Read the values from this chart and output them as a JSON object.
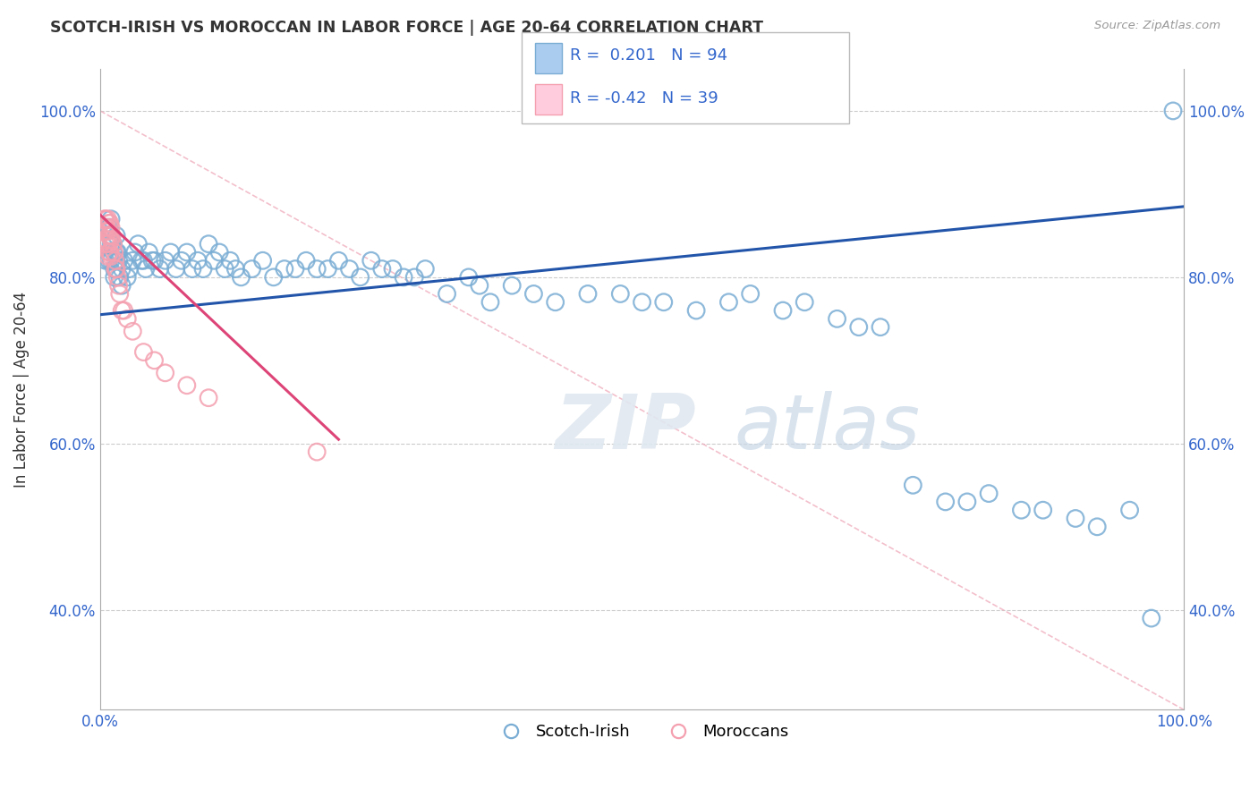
{
  "title": "SCOTCH-IRISH VS MOROCCAN IN LABOR FORCE | AGE 20-64 CORRELATION CHART",
  "source": "Source: ZipAtlas.com",
  "ylabel": "In Labor Force | Age 20-64",
  "xlim": [
    0.0,
    1.0
  ],
  "ylim": [
    0.28,
    1.05
  ],
  "xtick_labels": [
    "0.0%",
    "100.0%"
  ],
  "ytick_labels": [
    "40.0%",
    "60.0%",
    "80.0%",
    "100.0%"
  ],
  "ytick_values": [
    0.4,
    0.6,
    0.8,
    1.0
  ],
  "blue_color": "#7aadd4",
  "pink_color": "#f4a0b0",
  "blue_line_color": "#2255aa",
  "pink_line_color": "#dd4477",
  "legend_blue_label": "Scotch-Irish",
  "legend_pink_label": "Moroccans",
  "R_blue": 0.201,
  "N_blue": 94,
  "R_pink": -0.42,
  "N_pink": 39,
  "blue_trend_x": [
    0.0,
    1.0
  ],
  "blue_trend_y": [
    0.755,
    0.885
  ],
  "pink_trend_x": [
    0.0,
    0.22
  ],
  "pink_trend_y": [
    0.875,
    0.605
  ],
  "diag_line_x": [
    0.0,
    1.0
  ],
  "diag_line_y": [
    1.0,
    0.28
  ],
  "blue_scatter_x": [
    0.005,
    0.008,
    0.008,
    0.01,
    0.01,
    0.01,
    0.01,
    0.012,
    0.012,
    0.013,
    0.013,
    0.015,
    0.015,
    0.015,
    0.016,
    0.017,
    0.018,
    0.02,
    0.02,
    0.022,
    0.025,
    0.027,
    0.03,
    0.032,
    0.035,
    0.038,
    0.04,
    0.042,
    0.045,
    0.048,
    0.05,
    0.055,
    0.06,
    0.065,
    0.07,
    0.075,
    0.08,
    0.085,
    0.09,
    0.095,
    0.1,
    0.105,
    0.11,
    0.115,
    0.12,
    0.125,
    0.13,
    0.14,
    0.15,
    0.16,
    0.17,
    0.18,
    0.19,
    0.2,
    0.21,
    0.22,
    0.23,
    0.24,
    0.25,
    0.26,
    0.27,
    0.28,
    0.29,
    0.3,
    0.32,
    0.34,
    0.35,
    0.36,
    0.38,
    0.4,
    0.42,
    0.45,
    0.48,
    0.5,
    0.52,
    0.55,
    0.58,
    0.6,
    0.63,
    0.65,
    0.68,
    0.7,
    0.72,
    0.75,
    0.78,
    0.8,
    0.82,
    0.85,
    0.87,
    0.9,
    0.92,
    0.95,
    0.97,
    0.99
  ],
  "blue_scatter_y": [
    0.82,
    0.86,
    0.82,
    0.87,
    0.85,
    0.84,
    0.82,
    0.84,
    0.83,
    0.81,
    0.8,
    0.85,
    0.83,
    0.81,
    0.83,
    0.82,
    0.8,
    0.81,
    0.79,
    0.82,
    0.8,
    0.81,
    0.82,
    0.83,
    0.84,
    0.82,
    0.82,
    0.81,
    0.83,
    0.82,
    0.82,
    0.81,
    0.82,
    0.83,
    0.81,
    0.82,
    0.83,
    0.81,
    0.82,
    0.81,
    0.84,
    0.82,
    0.83,
    0.81,
    0.82,
    0.81,
    0.8,
    0.81,
    0.82,
    0.8,
    0.81,
    0.81,
    0.82,
    0.81,
    0.81,
    0.82,
    0.81,
    0.8,
    0.82,
    0.81,
    0.81,
    0.8,
    0.8,
    0.81,
    0.78,
    0.8,
    0.79,
    0.77,
    0.79,
    0.78,
    0.77,
    0.78,
    0.78,
    0.77,
    0.77,
    0.76,
    0.77,
    0.78,
    0.76,
    0.77,
    0.75,
    0.74,
    0.74,
    0.55,
    0.53,
    0.53,
    0.54,
    0.52,
    0.52,
    0.51,
    0.5,
    0.52,
    0.39,
    1.0
  ],
  "pink_scatter_x": [
    0.004,
    0.004,
    0.005,
    0.005,
    0.005,
    0.006,
    0.006,
    0.007,
    0.007,
    0.007,
    0.007,
    0.008,
    0.008,
    0.008,
    0.009,
    0.009,
    0.009,
    0.01,
    0.01,
    0.01,
    0.011,
    0.012,
    0.013,
    0.014,
    0.014,
    0.015,
    0.016,
    0.017,
    0.018,
    0.02,
    0.022,
    0.025,
    0.03,
    0.04,
    0.05,
    0.06,
    0.08,
    0.1,
    0.2
  ],
  "pink_scatter_y": [
    0.87,
    0.86,
    0.87,
    0.855,
    0.84,
    0.86,
    0.845,
    0.87,
    0.855,
    0.84,
    0.825,
    0.865,
    0.85,
    0.83,
    0.865,
    0.85,
    0.83,
    0.86,
    0.845,
    0.825,
    0.85,
    0.84,
    0.83,
    0.82,
    0.81,
    0.81,
    0.8,
    0.79,
    0.78,
    0.76,
    0.76,
    0.75,
    0.735,
    0.71,
    0.7,
    0.685,
    0.67,
    0.655,
    0.59
  ]
}
